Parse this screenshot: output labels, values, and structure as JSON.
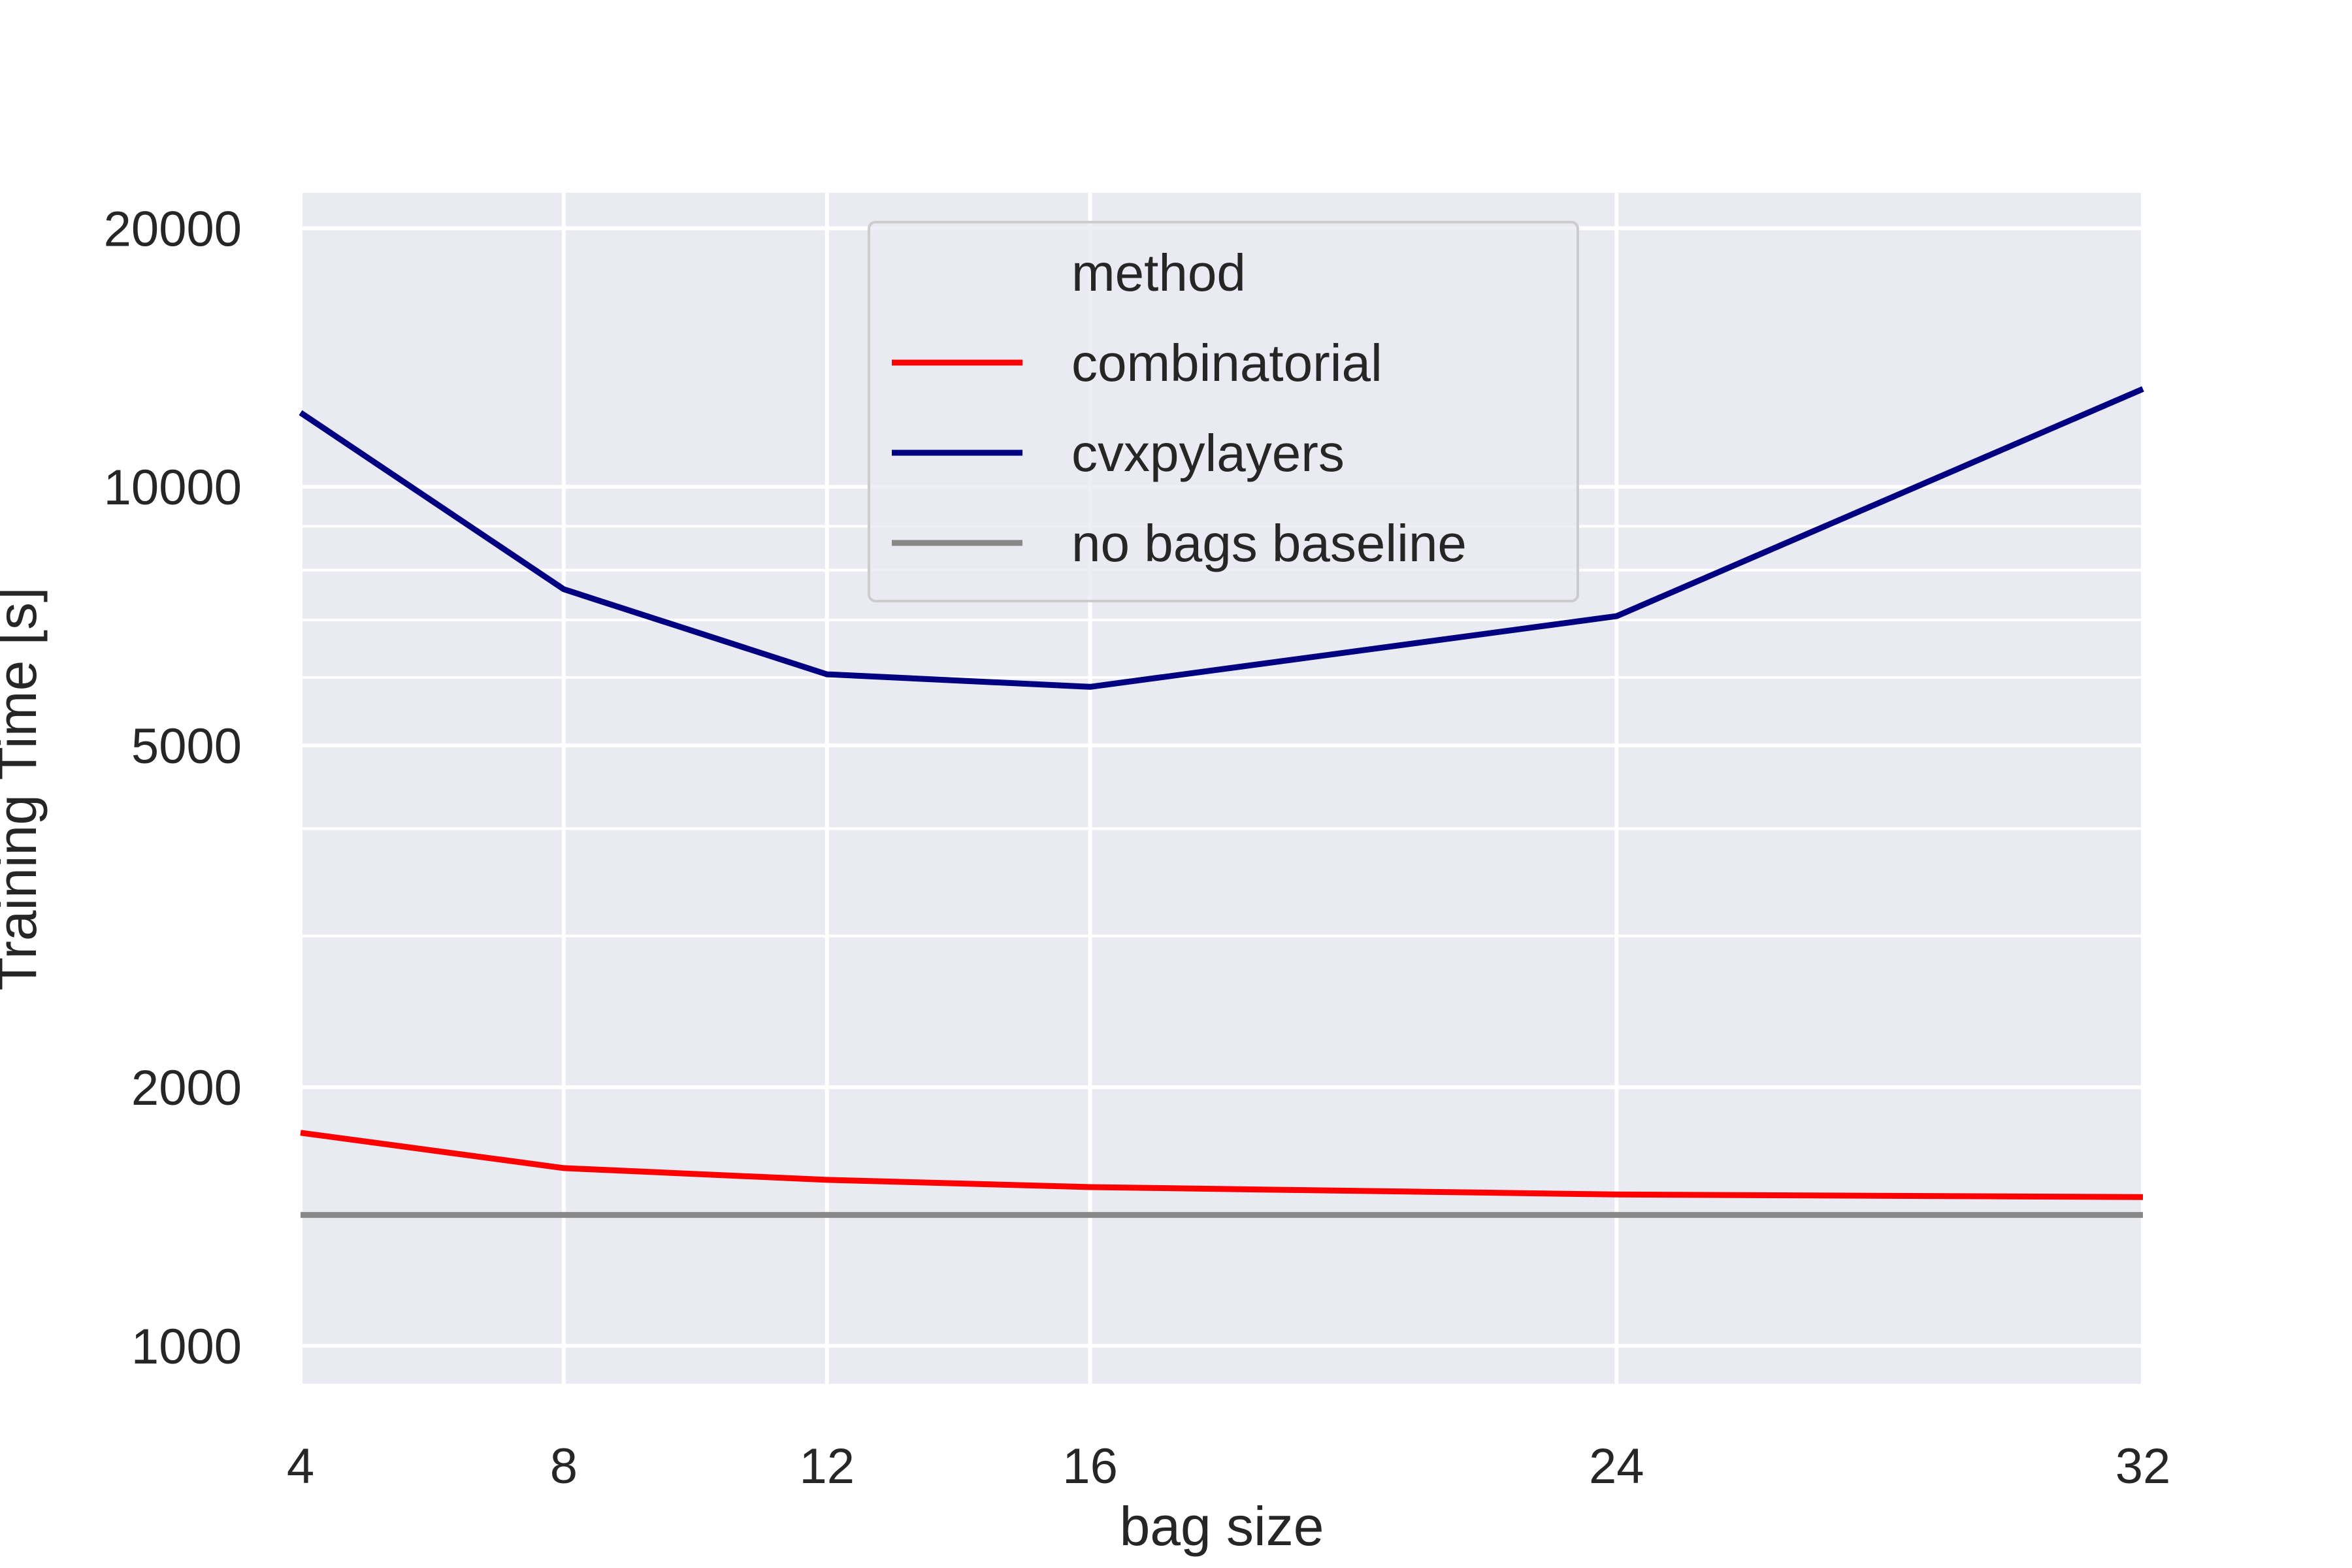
{
  "chart_data": {
    "type": "line",
    "title": "",
    "xlabel": "bag size",
    "ylabel": "Training Time [s]",
    "x": [
      4,
      8,
      12,
      16,
      24,
      32
    ],
    "xticks": [
      "4",
      "8",
      "12",
      "16",
      "24",
      "32"
    ],
    "yscale": "log",
    "ylim": [
      900,
      22000
    ],
    "yticks": [
      1000,
      2000,
      5000,
      10000,
      20000
    ],
    "ytick_labels": [
      "1000",
      "2000",
      "5000",
      "10000",
      "20000"
    ],
    "grid": true,
    "legend": {
      "title": "method",
      "placement": "upper-center"
    },
    "series": [
      {
        "name": "combinatorial",
        "color": "#ff0000",
        "values": [
          1770,
          1610,
          1560,
          1530,
          1500,
          1490
        ]
      },
      {
        "name": "cvxpylayers",
        "color": "#000080",
        "values": [
          12200,
          7600,
          6050,
          5850,
          7070,
          13000
        ]
      },
      {
        "name": "no bags baseline",
        "color": "#888888",
        "values": [
          1420,
          1420,
          1420,
          1420,
          1420,
          1420
        ]
      }
    ]
  }
}
